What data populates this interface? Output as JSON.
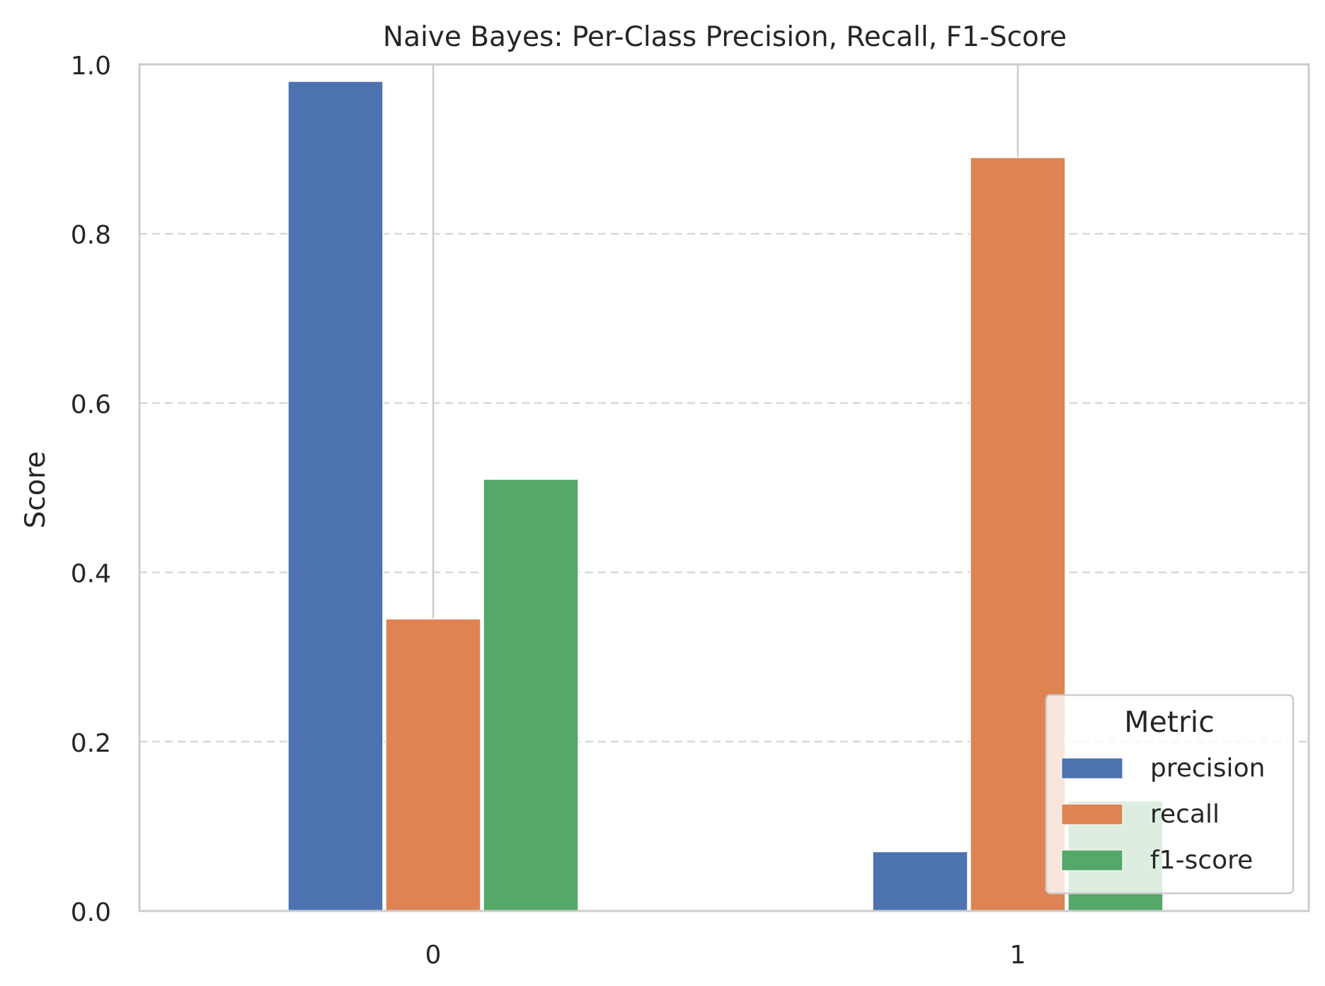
{
  "chart_data": {
    "type": "bar",
    "title": "Naive Bayes: Per-Class Precision, Recall, F1-Score",
    "xlabel": "",
    "ylabel": "Score",
    "categories": [
      "0",
      "1"
    ],
    "series": [
      {
        "name": "precision",
        "values": [
          0.98,
          0.07
        ],
        "color": "#4C72B0"
      },
      {
        "name": "recall",
        "values": [
          0.345,
          0.89
        ],
        "color": "#DD8452"
      },
      {
        "name": "f1-score",
        "values": [
          0.51,
          0.13
        ],
        "color": "#55A868"
      }
    ],
    "ylim": [
      0,
      1.0
    ],
    "yticks": [
      "0.0",
      "0.2",
      "0.4",
      "0.6",
      "0.8",
      "1.0"
    ],
    "grid": "horizontal dashed",
    "legend": {
      "title": "Metric",
      "placement": "lower right"
    }
  }
}
